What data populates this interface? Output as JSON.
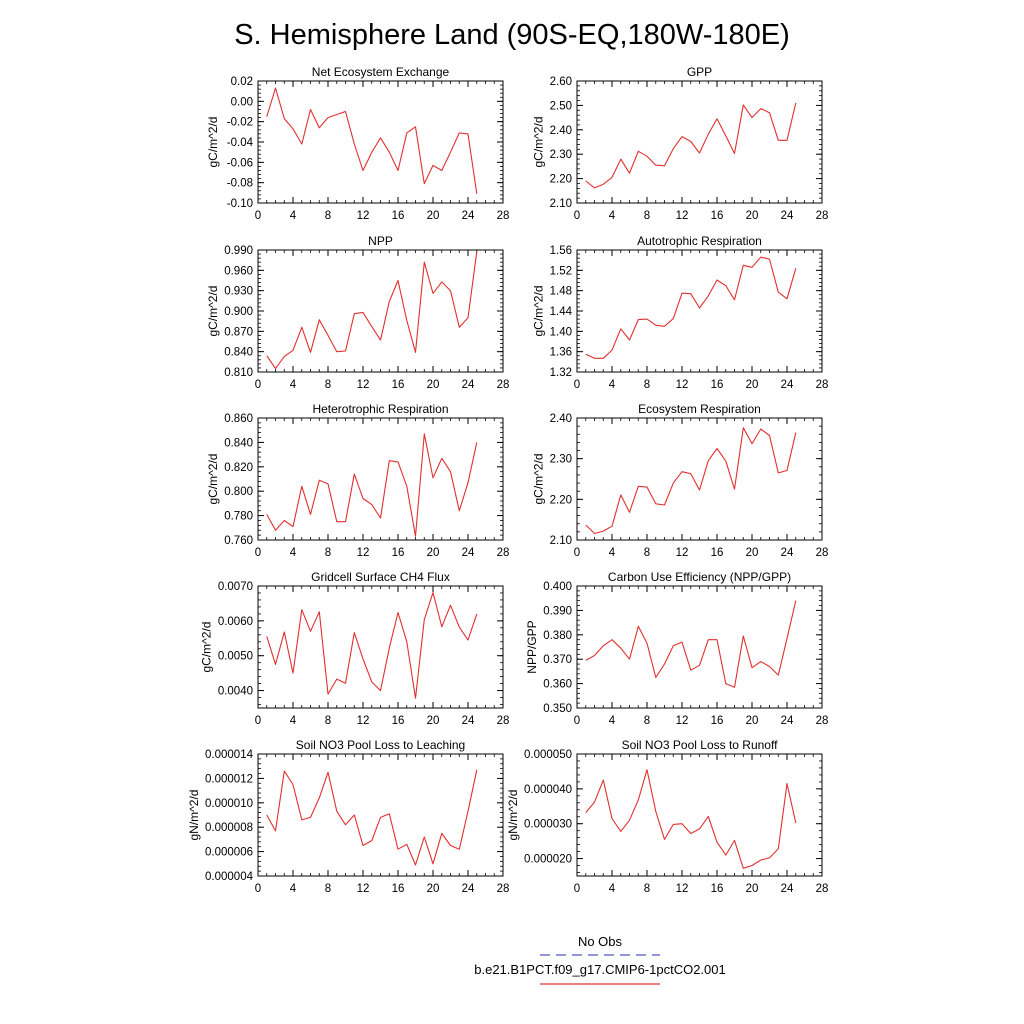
{
  "figure": {
    "title": "S. Hemisphere Land (90S-EQ,180W-180E)",
    "legend": {
      "obs_label": "No Obs",
      "model_label": "b.e21.B1PCT.f09_g17.CMIP6-1pctCO2.001",
      "obs_color": "#5555cc",
      "model_color": "#e03030"
    }
  },
  "chart_data": [
    {
      "type": "line",
      "title": "Net Ecosystem Exchange",
      "ylabel": "gC/m^2/d",
      "xlim": [
        0,
        28
      ],
      "xticks": [
        "0",
        "4",
        "8",
        "12",
        "16",
        "20",
        "24",
        "28"
      ],
      "ylim": [
        -0.1,
        0.02
      ],
      "yticks": [
        "-0.10",
        "-0.08",
        "-0.06",
        "-0.04",
        "-0.02",
        "0.00",
        "0.02"
      ],
      "series": [
        {
          "color": "#e03030",
          "x": [
            1,
            2,
            3,
            4,
            5,
            6,
            7,
            8,
            9,
            10,
            11,
            12,
            13,
            14,
            15,
            16,
            17,
            18,
            19,
            20,
            21,
            22,
            23,
            24,
            25
          ],
          "y": [
            -0.015,
            0.013,
            -0.017,
            -0.027,
            -0.042,
            -0.008,
            -0.026,
            -0.016,
            -0.013,
            -0.01,
            -0.042,
            -0.068,
            -0.05,
            -0.036,
            -0.05,
            -0.068,
            -0.031,
            -0.025,
            -0.081,
            -0.063,
            -0.068,
            -0.05,
            -0.031,
            -0.032,
            -0.091
          ]
        }
      ]
    },
    {
      "type": "line",
      "title": "GPP",
      "ylabel": "gC/m^2/d",
      "xlim": [
        0,
        28
      ],
      "xticks": [
        "0",
        "4",
        "8",
        "12",
        "16",
        "20",
        "24",
        "28"
      ],
      "ylim": [
        2.1,
        2.6
      ],
      "yticks": [
        "2.10",
        "2.20",
        "2.30",
        "2.40",
        "2.50",
        "2.60"
      ],
      "series": [
        {
          "color": "#e03030",
          "x": [
            1,
            2,
            3,
            4,
            5,
            6,
            7,
            8,
            9,
            10,
            11,
            12,
            13,
            14,
            15,
            16,
            17,
            18,
            19,
            20,
            21,
            22,
            23,
            24,
            25
          ],
          "y": [
            2.19,
            2.162,
            2.177,
            2.205,
            2.28,
            2.222,
            2.312,
            2.292,
            2.255,
            2.253,
            2.323,
            2.372,
            2.352,
            2.305,
            2.382,
            2.445,
            2.375,
            2.303,
            2.502,
            2.45,
            2.487,
            2.47,
            2.357,
            2.357,
            2.51
          ]
        }
      ]
    },
    {
      "type": "line",
      "title": "NPP",
      "ylabel": "gC/m^2/d",
      "xlim": [
        0,
        28
      ],
      "xticks": [
        "0",
        "4",
        "8",
        "12",
        "16",
        "20",
        "24",
        "28"
      ],
      "ylim": [
        0.81,
        0.99
      ],
      "yticks": [
        "0.810",
        "0.840",
        "0.870",
        "0.900",
        "0.930",
        "0.960",
        "0.990"
      ],
      "series": [
        {
          "color": "#e03030",
          "x": [
            1,
            2,
            3,
            4,
            5,
            6,
            7,
            8,
            9,
            10,
            11,
            12,
            13,
            14,
            15,
            16,
            17,
            18,
            19,
            20,
            21,
            22,
            23,
            24,
            25
          ],
          "y": [
            0.834,
            0.815,
            0.833,
            0.842,
            0.876,
            0.839,
            0.887,
            0.864,
            0.84,
            0.841,
            0.896,
            0.898,
            0.877,
            0.857,
            0.914,
            0.945,
            0.886,
            0.839,
            0.972,
            0.926,
            0.943,
            0.93,
            0.876,
            0.89,
            0.988
          ]
        }
      ]
    },
    {
      "type": "line",
      "title": "Autotrophic Respiration",
      "ylabel": "gC/m^2/d",
      "xlim": [
        0,
        28
      ],
      "xticks": [
        "0",
        "4",
        "8",
        "12",
        "16",
        "20",
        "24",
        "28"
      ],
      "ylim": [
        1.32,
        1.56
      ],
      "yticks": [
        "1.32",
        "1.36",
        "1.40",
        "1.44",
        "1.48",
        "1.52",
        "1.56"
      ],
      "series": [
        {
          "color": "#e03030",
          "x": [
            1,
            2,
            3,
            4,
            5,
            6,
            7,
            8,
            9,
            10,
            11,
            12,
            13,
            14,
            15,
            16,
            17,
            18,
            19,
            20,
            21,
            22,
            23,
            24,
            25
          ],
          "y": [
            1.355,
            1.347,
            1.347,
            1.363,
            1.405,
            1.383,
            1.423,
            1.424,
            1.412,
            1.41,
            1.425,
            1.475,
            1.474,
            1.446,
            1.47,
            1.501,
            1.49,
            1.462,
            1.53,
            1.526,
            1.546,
            1.542,
            1.477,
            1.464,
            1.524
          ]
        }
      ]
    },
    {
      "type": "line",
      "title": "Heterotrophic Respiration",
      "ylabel": "gC/m^2/d",
      "xlim": [
        0,
        28
      ],
      "xticks": [
        "0",
        "4",
        "8",
        "12",
        "16",
        "20",
        "24",
        "28"
      ],
      "ylim": [
        0.76,
        0.86
      ],
      "yticks": [
        "0.760",
        "0.780",
        "0.800",
        "0.820",
        "0.840",
        "0.860"
      ],
      "series": [
        {
          "color": "#e03030",
          "x": [
            1,
            2,
            3,
            4,
            5,
            6,
            7,
            8,
            9,
            10,
            11,
            12,
            13,
            14,
            15,
            16,
            17,
            18,
            19,
            20,
            21,
            22,
            23,
            24,
            25
          ],
          "y": [
            0.781,
            0.768,
            0.776,
            0.771,
            0.804,
            0.781,
            0.809,
            0.806,
            0.775,
            0.775,
            0.814,
            0.794,
            0.789,
            0.778,
            0.825,
            0.824,
            0.804,
            0.763,
            0.847,
            0.811,
            0.827,
            0.816,
            0.784,
            0.807,
            0.84
          ]
        }
      ]
    },
    {
      "type": "line",
      "title": "Ecosystem Respiration",
      "ylabel": "gC/m^2/d",
      "xlim": [
        0,
        28
      ],
      "xticks": [
        "0",
        "4",
        "8",
        "12",
        "16",
        "20",
        "24",
        "28"
      ],
      "ylim": [
        2.1,
        2.4
      ],
      "yticks": [
        "2.10",
        "2.20",
        "2.30",
        "2.40"
      ],
      "series": [
        {
          "color": "#e03030",
          "x": [
            1,
            2,
            3,
            4,
            5,
            6,
            7,
            8,
            9,
            10,
            11,
            12,
            13,
            14,
            15,
            16,
            17,
            18,
            19,
            20,
            21,
            22,
            23,
            24,
            25
          ],
          "y": [
            2.137,
            2.116,
            2.122,
            2.134,
            2.211,
            2.168,
            2.232,
            2.23,
            2.189,
            2.186,
            2.24,
            2.268,
            2.263,
            2.223,
            2.295,
            2.325,
            2.294,
            2.225,
            2.376,
            2.337,
            2.373,
            2.357,
            2.265,
            2.271,
            2.364
          ]
        }
      ]
    },
    {
      "type": "line",
      "title": "Gridcell Surface CH4 Flux",
      "ylabel": "gC/m^2/d",
      "xlim": [
        0,
        28
      ],
      "xticks": [
        "0",
        "4",
        "8",
        "12",
        "16",
        "20",
        "24",
        "28"
      ],
      "ylim": [
        0.0035,
        0.007
      ],
      "yticks": [
        "0.0040",
        "0.0050",
        "0.0060",
        "0.0070"
      ],
      "series": [
        {
          "color": "#e03030",
          "x": [
            1,
            2,
            3,
            4,
            5,
            6,
            7,
            8,
            9,
            10,
            11,
            12,
            13,
            14,
            15,
            16,
            17,
            18,
            19,
            20,
            21,
            22,
            23,
            24,
            25
          ],
          "y": [
            0.00555,
            0.00475,
            0.00568,
            0.0045,
            0.00632,
            0.0057,
            0.00626,
            0.0039,
            0.00433,
            0.00421,
            0.00566,
            0.00491,
            0.00425,
            0.004,
            0.00522,
            0.00624,
            0.0054,
            0.00378,
            0.00604,
            0.00681,
            0.00583,
            0.00645,
            0.00582,
            0.00545,
            0.0062
          ]
        }
      ]
    },
    {
      "type": "line",
      "title": "Carbon Use Efficiency (NPP/GPP)",
      "ylabel": "NPP/GPP",
      "xlim": [
        0,
        28
      ],
      "xticks": [
        "0",
        "4",
        "8",
        "12",
        "16",
        "20",
        "24",
        "28"
      ],
      "ylim": [
        0.35,
        0.4
      ],
      "yticks": [
        "0.350",
        "0.360",
        "0.370",
        "0.380",
        "0.390",
        "0.400"
      ],
      "series": [
        {
          "color": "#e03030",
          "x": [
            1,
            2,
            3,
            4,
            5,
            6,
            7,
            8,
            9,
            10,
            11,
            12,
            13,
            14,
            15,
            16,
            17,
            18,
            19,
            20,
            21,
            22,
            23,
            24,
            25
          ],
          "y": [
            0.3695,
            0.3715,
            0.3755,
            0.378,
            0.3745,
            0.37,
            0.3835,
            0.3765,
            0.3625,
            0.368,
            0.3755,
            0.377,
            0.3655,
            0.3675,
            0.378,
            0.378,
            0.36,
            0.3585,
            0.3795,
            0.3665,
            0.369,
            0.367,
            0.3635,
            0.3785,
            0.394
          ]
        }
      ]
    },
    {
      "type": "line",
      "title": "Soil NO3 Pool Loss to Leaching",
      "ylabel": "gN/m^2/d",
      "xlim": [
        0,
        28
      ],
      "xticks": [
        "0",
        "4",
        "8",
        "12",
        "16",
        "20",
        "24",
        "28"
      ],
      "ylim": [
        4e-06,
        1.4e-05
      ],
      "yticks": [
        "0.000004",
        "0.000006",
        "0.000008",
        "0.000010",
        "0.000012",
        "0.000014"
      ],
      "series": [
        {
          "color": "#e03030",
          "x": [
            1,
            2,
            3,
            4,
            5,
            6,
            7,
            8,
            9,
            10,
            11,
            12,
            13,
            14,
            15,
            16,
            17,
            18,
            19,
            20,
            21,
            22,
            23,
            24,
            25
          ],
          "y": [
            9e-06,
            7.7e-06,
            1.26e-05,
            1.15e-05,
            8.6e-06,
            8.8e-06,
            1.04e-05,
            1.25e-05,
            9.3e-06,
            8.2e-06,
            9e-06,
            6.5e-06,
            6.9e-06,
            8.8e-06,
            9.1e-06,
            6.2e-06,
            6.6e-06,
            4.9e-06,
            7.2e-06,
            5e-06,
            7.5e-06,
            6.5e-06,
            6.2e-06,
            9.3e-06,
            1.27e-05
          ]
        }
      ]
    },
    {
      "type": "line",
      "title": "Soil NO3 Pool Loss to Runoff",
      "ylabel": "gN/m^2/d",
      "xlim": [
        0,
        28
      ],
      "xticks": [
        "0",
        "4",
        "8",
        "12",
        "16",
        "20",
        "24",
        "28"
      ],
      "ylim": [
        1.5e-05,
        5e-05
      ],
      "yticks": [
        "0.000020",
        "0.000030",
        "0.000040",
        "0.000050"
      ],
      "series": [
        {
          "color": "#e03030",
          "x": [
            1,
            2,
            3,
            4,
            5,
            6,
            7,
            8,
            9,
            10,
            11,
            12,
            13,
            14,
            15,
            16,
            17,
            18,
            19,
            20,
            21,
            22,
            23,
            24,
            25
          ],
          "y": [
            3.32e-05,
            3.62e-05,
            4.25e-05,
            3.15e-05,
            2.78e-05,
            3.1e-05,
            3.68e-05,
            4.55e-05,
            3.35e-05,
            2.55e-05,
            2.98e-05,
            3e-05,
            2.72e-05,
            2.85e-05,
            3.21e-05,
            2.47e-05,
            2.1e-05,
            2.52e-05,
            1.72e-05,
            1.8e-05,
            1.96e-05,
            2.02e-05,
            2.28e-05,
            4.15e-05,
            3.02e-05
          ]
        }
      ]
    }
  ]
}
